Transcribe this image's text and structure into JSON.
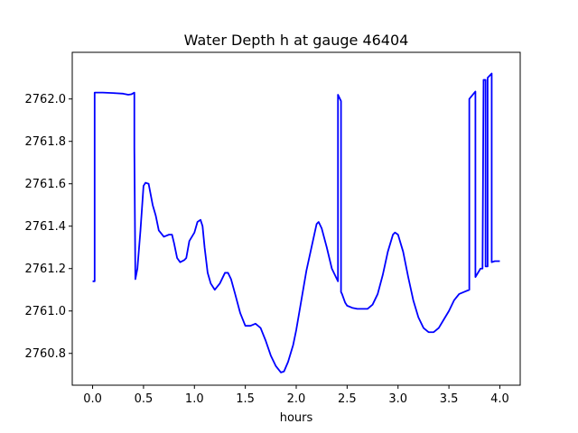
{
  "chart_data": {
    "type": "line",
    "title": "Water Depth h at gauge 46404",
    "xlabel": "hours",
    "ylabel": "",
    "xlim": [
      -0.2,
      4.2
    ],
    "ylim": [
      2760.65,
      2762.22
    ],
    "x_ticks": [
      0.0,
      0.5,
      1.0,
      1.5,
      2.0,
      2.5,
      3.0,
      3.5,
      4.0
    ],
    "x_tick_labels": [
      "0.0",
      "0.5",
      "1.0",
      "1.5",
      "2.0",
      "2.5",
      "3.0",
      "3.5",
      "4.0"
    ],
    "y_ticks": [
      2760.8,
      2761.0,
      2761.2,
      2761.4,
      2761.6,
      2761.8,
      2762.0
    ],
    "y_tick_labels": [
      "2760.8",
      "2761.0",
      "2761.2",
      "2761.4",
      "2761.6",
      "2761.8",
      "2762.0"
    ],
    "grid": false,
    "legend": "none",
    "series": [
      {
        "color": "#0000ff",
        "x": [
          0.0,
          0.02,
          0.02,
          0.1,
          0.2,
          0.3,
          0.35,
          0.38,
          0.41,
          0.41,
          0.42,
          0.44,
          0.47,
          0.5,
          0.52,
          0.55,
          0.57,
          0.59,
          0.62,
          0.65,
          0.7,
          0.75,
          0.78,
          0.8,
          0.83,
          0.86,
          0.9,
          0.92,
          0.95,
          1.0,
          1.03,
          1.06,
          1.08,
          1.1,
          1.13,
          1.16,
          1.2,
          1.25,
          1.3,
          1.33,
          1.36,
          1.4,
          1.45,
          1.5,
          1.55,
          1.6,
          1.65,
          1.7,
          1.75,
          1.8,
          1.85,
          1.88,
          1.92,
          1.97,
          2.0,
          2.05,
          2.1,
          2.15,
          2.2,
          2.22,
          2.25,
          2.3,
          2.35,
          2.4,
          2.41,
          2.41,
          2.44,
          2.44,
          2.45,
          2.48,
          2.5,
          2.55,
          2.6,
          2.65,
          2.7,
          2.75,
          2.8,
          2.85,
          2.9,
          2.95,
          2.97,
          3.0,
          3.05,
          3.1,
          3.15,
          3.2,
          3.25,
          3.3,
          3.35,
          3.4,
          3.45,
          3.5,
          3.55,
          3.6,
          3.65,
          3.7,
          3.7,
          3.76,
          3.76,
          3.81,
          3.83,
          3.84,
          3.86,
          3.86,
          3.88,
          3.88,
          3.92,
          3.92,
          3.95,
          4.0
        ],
        "y": [
          2761.14,
          2761.14,
          2762.03,
          2762.03,
          2762.028,
          2762.025,
          2762.02,
          2762.022,
          2762.03,
          2761.77,
          2761.15,
          2761.2,
          2761.38,
          2761.59,
          2761.605,
          2761.6,
          2761.55,
          2761.5,
          2761.45,
          2761.38,
          2761.35,
          2761.36,
          2761.36,
          2761.32,
          2761.25,
          2761.23,
          2761.24,
          2761.25,
          2761.33,
          2761.37,
          2761.42,
          2761.43,
          2761.4,
          2761.3,
          2761.18,
          2761.13,
          2761.1,
          2761.13,
          2761.18,
          2761.18,
          2761.15,
          2761.08,
          2760.99,
          2760.93,
          2760.93,
          2760.94,
          2760.92,
          2760.86,
          2760.79,
          2760.74,
          2760.71,
          2760.715,
          2760.76,
          2760.84,
          2760.91,
          2761.05,
          2761.19,
          2761.3,
          2761.41,
          2761.42,
          2761.39,
          2761.3,
          2761.2,
          2761.15,
          2761.14,
          2762.02,
          2761.99,
          2761.09,
          2761.08,
          2761.04,
          2761.025,
          2761.015,
          2761.01,
          2761.01,
          2761.01,
          2761.03,
          2761.08,
          2761.17,
          2761.28,
          2761.36,
          2761.37,
          2761.36,
          2761.28,
          2761.16,
          2761.05,
          2760.97,
          2760.92,
          2760.9,
          2760.9,
          2760.92,
          2760.96,
          2761.0,
          2761.05,
          2761.08,
          2761.09,
          2761.1,
          2762.0,
          2762.035,
          2761.16,
          2761.2,
          2761.2,
          2762.09,
          2762.09,
          2761.21,
          2761.21,
          2762.1,
          2762.12,
          2761.23,
          2761.235,
          2761.235
        ]
      }
    ]
  }
}
